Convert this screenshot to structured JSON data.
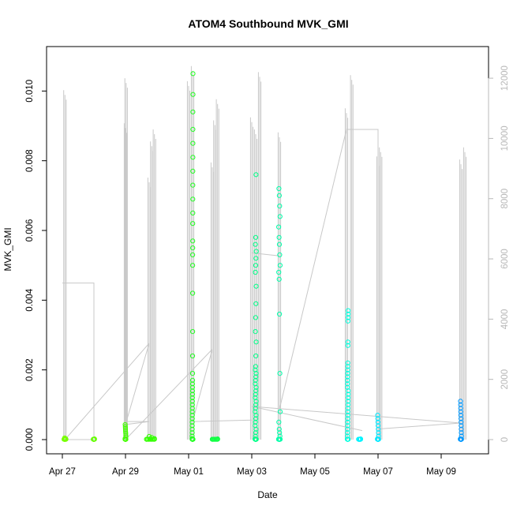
{
  "chart_data": {
    "type": "scatter",
    "title": "ATOM4 Southbound MVK_GMI",
    "xlabel": "Date",
    "ylabel": "MVK_GMI",
    "x_range": [
      "2016-04-26T12:00",
      "2016-05-10T12:00"
    ],
    "xticks": [
      {
        "date": "2016-04-27",
        "label": "Apr 27"
      },
      {
        "date": "2016-04-29",
        "label": "Apr 29"
      },
      {
        "date": "2016-05-01",
        "label": "May 01"
      },
      {
        "date": "2016-05-03",
        "label": "May 03"
      },
      {
        "date": "2016-05-05",
        "label": "May 05"
      },
      {
        "date": "2016-05-07",
        "label": "May 07"
      },
      {
        "date": "2016-05-09",
        "label": "May 09"
      }
    ],
    "ylim": [
      0,
      0.0108
    ],
    "yticks": [
      "0.000",
      "0.002",
      "0.004",
      "0.006",
      "0.008",
      "0.010"
    ],
    "y2lim": [
      0,
      12500
    ],
    "y2ticks": [
      "0",
      "2000",
      "4000",
      "6000",
      "8000",
      "10000",
      "12000"
    ],
    "colors": {
      "right_axis": "#b8b8b8",
      "trace": "#c8c8c8",
      "clusters": [
        "#77ff00",
        "#55ff00",
        "#33ff00",
        "#22ff22",
        "#11ff44",
        "#00ff66",
        "#00ff99",
        "#00ffbb",
        "#00ffdd",
        "#00f4ff",
        "#00e8ff",
        "#0099ff"
      ]
    },
    "scatter_clusters": [
      {
        "date": "2016-04-27T02:00",
        "span_h": 1.4,
        "color": "#77ff00",
        "values": [
          1e-05,
          2e-05,
          3e-05,
          5e-05
        ]
      },
      {
        "date": "2016-04-28T00:00",
        "span_h": 0.8,
        "color": "#66ff00",
        "values": [
          1e-05,
          2e-05
        ]
      },
      {
        "date": "2016-04-29T00:00",
        "span_h": 0.6,
        "color": "#44ff00",
        "values": [
          3e-05,
          8e-05,
          0.00013,
          0.00018,
          0.00023,
          0.00028,
          0.00033,
          0.00038,
          0.00043
        ]
      },
      {
        "date": "2016-04-29T19:00",
        "span_h": 6,
        "color": "#33ff00",
        "values": [
          1e-05,
          3e-05,
          6e-05,
          9e-05
        ]
      },
      {
        "date": "2016-05-01T03:00",
        "span_h": 0.6,
        "color": "#22ff22",
        "values": [
          3e-05,
          0.0001,
          0.0002,
          0.0003,
          0.0004,
          0.0005,
          0.0006,
          0.0007,
          0.0008,
          0.0009,
          0.001,
          0.0011,
          0.0012,
          0.0013,
          0.0014,
          0.0015,
          0.0016,
          0.0017,
          0.0019,
          0.0024,
          0.0031,
          0.0042,
          0.005,
          0.0053,
          0.0055,
          0.0057,
          0.0062,
          0.0065,
          0.0069,
          0.0073,
          0.0077,
          0.0081,
          0.0085,
          0.0089,
          0.0094,
          0.0099,
          0.0105
        ]
      },
      {
        "date": "2016-05-01T20:00",
        "span_h": 4,
        "color": "#11ff44",
        "values": [
          1e-05,
          2e-05
        ]
      },
      {
        "date": "2016-05-03T03:00",
        "span_h": 0.8,
        "color": "#00ff88",
        "values": [
          2e-05,
          0.0001,
          0.0002,
          0.0003,
          0.0004,
          0.0005,
          0.0006,
          0.0007,
          0.0008,
          0.0009,
          0.001,
          0.0011,
          0.0012,
          0.0013,
          0.0014,
          0.0015,
          0.0016,
          0.0017,
          0.0018,
          0.0019,
          0.002,
          0.0021,
          0.0024,
          0.0028,
          0.0031,
          0.0035,
          0.0039,
          0.0044,
          0.0048,
          0.005,
          0.0052,
          0.0054,
          0.0056,
          0.0058,
          0.0076
        ]
      },
      {
        "date": "2016-05-03T21:00",
        "span_h": 1.2,
        "color": "#00ffaa",
        "values": [
          1e-05,
          0.0001,
          0.0002,
          0.0003,
          0.0005,
          0.0008,
          0.0019,
          0.0036,
          0.0046,
          0.0048,
          0.005,
          0.0053,
          0.0056,
          0.0058,
          0.0061,
          0.0064,
          0.0067,
          0.007,
          0.0072
        ]
      },
      {
        "date": "2016-05-06T01:00",
        "span_h": 0.6,
        "color": "#00ffdd",
        "values": [
          1e-05,
          0.0001,
          0.0002,
          0.0003,
          0.0004,
          0.0005,
          0.0006,
          0.0007,
          0.0008,
          0.0009,
          0.001,
          0.0011,
          0.0012,
          0.0013,
          0.0014,
          0.0015,
          0.0016,
          0.0017,
          0.0018,
          0.0019,
          0.002,
          0.0021,
          0.0022,
          0.0027,
          0.0028,
          0.0034,
          0.0035,
          0.0036,
          0.0037
        ]
      },
      {
        "date": "2016-05-06T10:00",
        "span_h": 1.5,
        "color": "#00f4ff",
        "values": [
          1e-05,
          2e-05
        ]
      },
      {
        "date": "2016-05-07T00:00",
        "span_h": 0.8,
        "color": "#00e8ff",
        "values": [
          2e-05,
          0.0001,
          0.0002,
          0.0003,
          0.0004,
          0.0005,
          0.0006,
          0.0007
        ]
      },
      {
        "date": "2016-05-09T15:00",
        "span_h": 0.8,
        "color": "#0099ff",
        "values": [
          2e-05,
          0.0001,
          0.0002,
          0.0003,
          0.0004,
          0.0005,
          0.0006,
          0.0007,
          0.0008,
          0.0009,
          0.001,
          0.0011
        ]
      }
    ],
    "trace_spikes": [
      {
        "date": "2016-04-27T02:00",
        "y2": 11600
      },
      {
        "date": "2016-04-29T00:00",
        "y2": 10500
      },
      {
        "date": "2016-04-29T00:30",
        "y2": 12000
      },
      {
        "date": "2016-04-29T18:00",
        "y2": 8700
      },
      {
        "date": "2016-04-29T20:00",
        "y2": 9900
      },
      {
        "date": "2016-04-29T22:00",
        "y2": 10300
      },
      {
        "date": "2016-05-01T00:00",
        "y2": 11900
      },
      {
        "date": "2016-05-01T03:00",
        "y2": 12400
      },
      {
        "date": "2016-05-01T18:00",
        "y2": 9200
      },
      {
        "date": "2016-05-01T20:00",
        "y2": 10600
      },
      {
        "date": "2016-05-01T22:00",
        "y2": 11300
      },
      {
        "date": "2016-05-03T00:00",
        "y2": 10700
      },
      {
        "date": "2016-05-03T03:00",
        "y2": 10300
      },
      {
        "date": "2016-05-03T06:00",
        "y2": 12200
      },
      {
        "date": "2016-05-03T21:00",
        "y2": 10200
      },
      {
        "date": "2016-05-06T00:00",
        "y2": 11000
      },
      {
        "date": "2016-05-06T04:00",
        "y2": 12100
      },
      {
        "date": "2016-05-07T00:00",
        "y2": 9400
      },
      {
        "date": "2016-05-07T02:00",
        "y2": 9700
      },
      {
        "date": "2016-05-09T15:00",
        "y2": 9300
      },
      {
        "date": "2016-05-09T18:00",
        "y2": 9700
      }
    ],
    "trace_path": [
      {
        "date": "2016-04-27T00:00",
        "y2": 5200
      },
      {
        "date": "2016-04-28T00:00",
        "y2": 5200
      },
      {
        "date": "2016-04-28T00:00",
        "y2": 0
      },
      {
        "date": "2016-04-27T02:00",
        "y2": 0
      },
      {
        "date": "2016-04-29T18:00",
        "y2": 3200
      },
      {
        "date": "2016-04-29T00:00",
        "y2": 500
      },
      {
        "date": "2016-04-29T18:00",
        "y2": 600
      },
      {
        "date": "2016-04-29T00:00",
        "y2": 600
      },
      {
        "date": "2016-04-29T00:00",
        "y2": 0
      },
      {
        "date": "2016-05-01T18:00",
        "y2": 3000
      },
      {
        "date": "2016-05-01T03:00",
        "y2": 600
      },
      {
        "date": "2016-05-03T00:00",
        "y2": 650
      },
      {
        "date": "2016-05-03T00:00",
        "y2": 6200
      },
      {
        "date": "2016-05-03T21:00",
        "y2": 6100
      },
      {
        "date": "2016-05-03T21:00",
        "y2": 1000
      },
      {
        "date": "2016-05-06T00:00",
        "y2": 10300
      },
      {
        "date": "2016-05-07T00:00",
        "y2": 10300
      },
      {
        "date": "2016-05-07T00:00",
        "y2": 350
      },
      {
        "date": "2016-05-09T15:00",
        "y2": 550
      },
      {
        "date": "2016-05-03T00:00",
        "y2": 1100
      },
      {
        "date": "2016-05-06T12:00",
        "y2": 300
      }
    ]
  }
}
